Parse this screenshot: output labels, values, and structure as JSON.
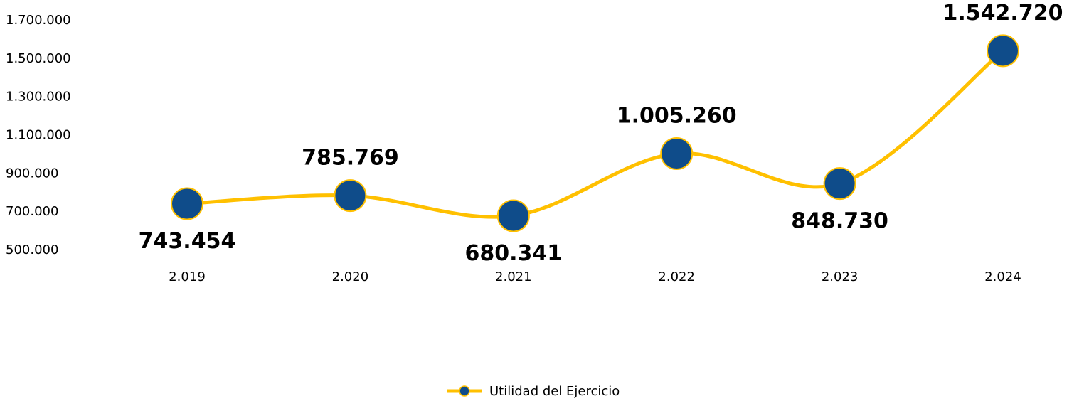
{
  "chart_data": {
    "type": "line",
    "categories": [
      "2.019",
      "2.020",
      "2.021",
      "2.022",
      "2.023",
      "2.024"
    ],
    "series": [
      {
        "name": "Utilidad del Ejercicio",
        "color": "#ffc000",
        "marker_color": "#0f4c8a",
        "values": [
          743454,
          785769,
          680341,
          1005260,
          848730,
          1542720
        ],
        "value_labels": [
          "743.454",
          "785.769",
          "680.341",
          "1.005.260",
          "848.730",
          "1.542.720"
        ]
      }
    ],
    "ylim": [
      500000,
      1700000
    ],
    "yticks": [
      {
        "value": 500000,
        "label": "500.000"
      },
      {
        "value": 700000,
        "label": "700.000"
      },
      {
        "value": 900000,
        "label": "900.000"
      },
      {
        "value": 1100000,
        "label": "1.100.000"
      },
      {
        "value": 1300000,
        "label": "1.300.000"
      },
      {
        "value": 1500000,
        "label": "1.500.000"
      },
      {
        "value": 1700000,
        "label": "1.700.000"
      }
    ],
    "smooth": true,
    "grid": false,
    "legend": "bottom"
  }
}
